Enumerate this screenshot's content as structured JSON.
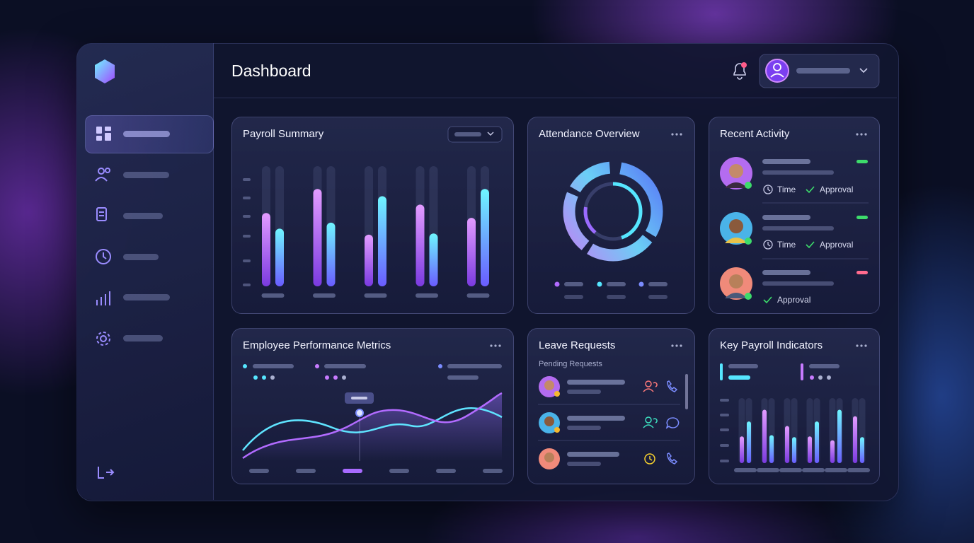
{
  "header": {
    "title": "Dashboard"
  },
  "payroll_summary": {
    "title": "Payroll Summary",
    "purple_bars": [
      61,
      81,
      43,
      68,
      57
    ],
    "cyan_bars": [
      48,
      53,
      75,
      44,
      81
    ],
    "ylim": [
      0,
      100
    ]
  },
  "attendance_overview": {
    "title": "Attendance Overview"
  },
  "recent_activity": {
    "title": "Recent Activity",
    "items": [
      {
        "time": "Time",
        "status": "Approval"
      },
      {
        "time": "Time",
        "status": "Approval"
      },
      {
        "status": "Approval"
      }
    ]
  },
  "employee_performance": {
    "title": "Employee Performance Metrics"
  },
  "leave_requests": {
    "title": "Leave Requests",
    "subtitle": "Pending Requests"
  },
  "key_payroll_indicators": {
    "title": "Key Payroll Indicators",
    "purple_bars": [
      41,
      82,
      57,
      41,
      35,
      72
    ],
    "cyan_bars": [
      64,
      43,
      40,
      64,
      82,
      40
    ],
    "ylim": [
      0,
      100
    ]
  }
}
